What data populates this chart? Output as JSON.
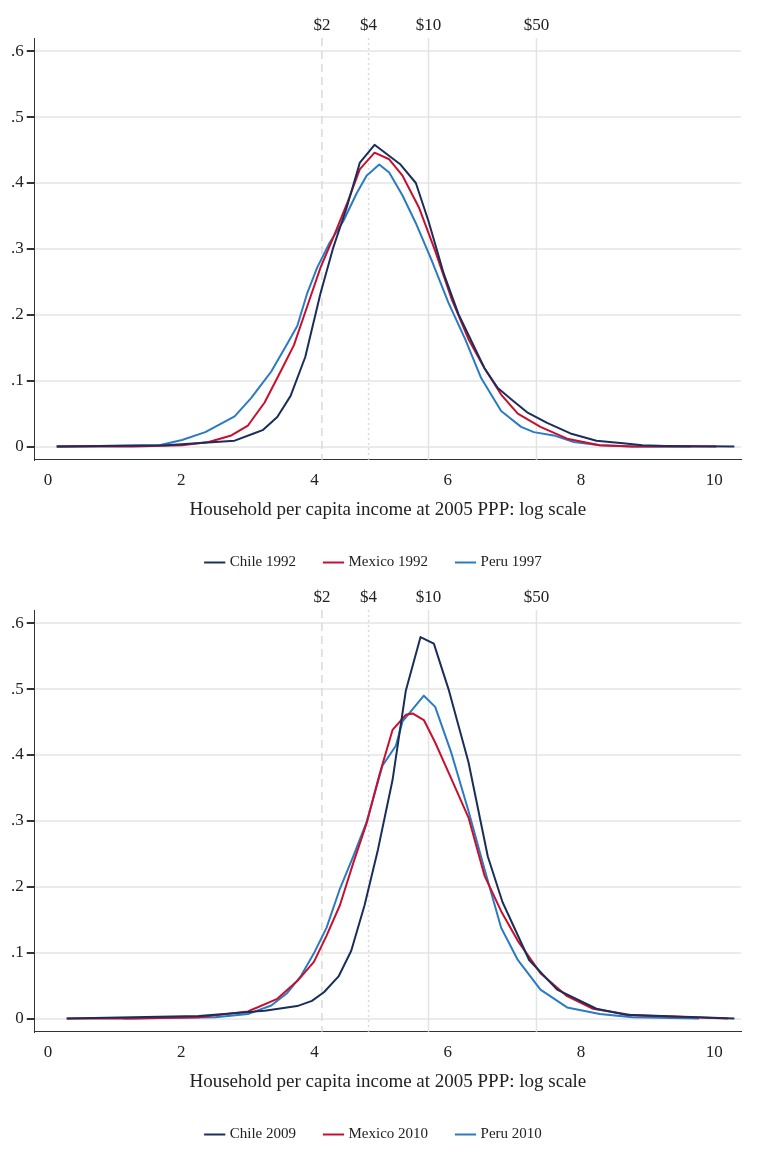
{
  "chart_data": [
    {
      "type": "line",
      "xlabel": "Household per capita income at 2005 PPP: log scale",
      "xlim": [
        -0.2,
        10.4
      ],
      "ylim": [
        -0.02,
        0.62
      ],
      "xticks": [
        0,
        2,
        4,
        6,
        8,
        10
      ],
      "yticks": [
        0,
        {
          "value": 0.1,
          "label": ".1"
        },
        {
          "value": 0.2,
          "label": ".2"
        },
        {
          "value": 0.3,
          "label": ".3"
        },
        {
          "value": 0.4,
          "label": ".4"
        },
        {
          "value": 0.5,
          "label": ".5"
        },
        {
          "value": 0.6,
          "label": ".6"
        }
      ],
      "grid": "y",
      "legend": "bottom",
      "line_style": "solid",
      "marker": "none",
      "ref_lines": [
        {
          "axis": "x",
          "value": 4.11,
          "color": "#d9d9d9",
          "line_style": "dashed"
        },
        {
          "axis": "x",
          "value": 4.81,
          "color": "#d9d9d9",
          "line_style": "dotted"
        },
        {
          "axis": "x",
          "value": 5.71,
          "color": "#e3e3e3",
          "line_style": "solid"
        },
        {
          "axis": "x",
          "value": 7.33,
          "color": "#e3e3e3",
          "line_style": "solid"
        }
      ],
      "annotations": [
        "$2",
        "$4",
        "$10",
        "$50"
      ],
      "series": [
        {
          "name": "Chile 1992",
          "color": "#1a2e5a",
          "x": [
            0.13,
            1.77,
            2.8,
            3.22,
            3.44,
            3.64,
            3.86,
            4.09,
            4.28,
            4.48,
            4.68,
            4.9,
            5.29,
            5.52,
            5.71,
            5.94,
            6.16,
            6.55,
            6.75,
            6.95,
            7.19,
            7.49,
            7.84,
            8.23,
            8.63,
            8.92,
            9.27,
            10.3
          ],
          "values": [
            0,
            0.002,
            0.009,
            0.025,
            0.045,
            0.077,
            0.136,
            0.233,
            0.302,
            0.362,
            0.431,
            0.458,
            0.428,
            0.4,
            0.342,
            0.262,
            0.201,
            0.119,
            0.089,
            0.072,
            0.052,
            0.036,
            0.02,
            0.009,
            0.005,
            0.002,
            0.001,
            0
          ]
        },
        {
          "name": "Mexico 1992",
          "color": "#c8102e",
          "x": [
            0.13,
            1.27,
            2.01,
            2.41,
            2.75,
            3.0,
            3.25,
            3.49,
            3.69,
            3.89,
            4.09,
            4.28,
            4.48,
            4.68,
            4.9,
            5.12,
            5.32,
            5.57,
            5.81,
            6.06,
            6.31,
            6.55,
            6.8,
            7.05,
            7.39,
            7.79,
            8.28,
            8.77,
            10.03
          ],
          "values": [
            0,
            0,
            0.002,
            0.007,
            0.017,
            0.032,
            0.067,
            0.114,
            0.154,
            0.213,
            0.272,
            0.317,
            0.367,
            0.421,
            0.446,
            0.436,
            0.411,
            0.362,
            0.297,
            0.223,
            0.163,
            0.119,
            0.079,
            0.05,
            0.03,
            0.012,
            0.002,
            0,
            0
          ]
        },
        {
          "name": "Peru 1997",
          "color": "#2b7bc4",
          "x": [
            0.13,
            1.67,
            2.01,
            2.36,
            2.8,
            3.05,
            3.35,
            3.59,
            3.74,
            3.89,
            4.04,
            4.23,
            4.43,
            4.63,
            4.78,
            4.97,
            5.12,
            5.32,
            5.52,
            5.76,
            6.01,
            6.26,
            6.5,
            6.8,
            7.1,
            7.29,
            7.59,
            7.89,
            8.28,
            8.77,
            9.65
          ],
          "values": [
            0,
            0.002,
            0.01,
            0.022,
            0.046,
            0.074,
            0.114,
            0.156,
            0.183,
            0.233,
            0.272,
            0.31,
            0.342,
            0.384,
            0.411,
            0.428,
            0.416,
            0.381,
            0.339,
            0.282,
            0.218,
            0.163,
            0.104,
            0.054,
            0.03,
            0.022,
            0.017,
            0.007,
            0.002,
            0,
            0
          ]
        }
      ]
    },
    {
      "type": "line",
      "xlabel": "Household per capita income at 2005 PPP: log scale",
      "xlim": [
        -0.2,
        10.4
      ],
      "ylim": [
        -0.02,
        0.62
      ],
      "xticks": [
        0,
        2,
        4,
        6,
        8,
        10
      ],
      "yticks": [
        0,
        {
          "value": 0.1,
          "label": ".1"
        },
        {
          "value": 0.2,
          "label": ".2"
        },
        {
          "value": 0.3,
          "label": ".3"
        },
        {
          "value": 0.4,
          "label": ".4"
        },
        {
          "value": 0.5,
          "label": ".5"
        },
        {
          "value": 0.6,
          "label": ".6"
        }
      ],
      "grid": "y",
      "legend": "bottom",
      "line_style": "solid",
      "marker": "none",
      "ref_lines": [
        {
          "axis": "x",
          "value": 4.11,
          "color": "#d9d9d9",
          "line_style": "dashed"
        },
        {
          "axis": "x",
          "value": 4.81,
          "color": "#d9d9d9",
          "line_style": "dotted"
        },
        {
          "axis": "x",
          "value": 5.71,
          "color": "#e3e3e3",
          "line_style": "solid"
        },
        {
          "axis": "x",
          "value": 7.33,
          "color": "#e3e3e3",
          "line_style": "solid"
        }
      ],
      "annotations": [
        "$2",
        "$4",
        "$10",
        "$50"
      ],
      "series": [
        {
          "name": "Chile 2009",
          "color": "#1a2e5a",
          "x": [
            0.28,
            2.26,
            3.25,
            3.74,
            3.96,
            4.14,
            4.36,
            4.55,
            4.75,
            4.95,
            5.17,
            5.37,
            5.59,
            5.79,
            6.01,
            6.31,
            6.6,
            6.82,
            7.22,
            7.64,
            8.23,
            8.67,
            10.3
          ],
          "values": [
            0,
            0.004,
            0.012,
            0.019,
            0.027,
            0.04,
            0.064,
            0.103,
            0.172,
            0.256,
            0.362,
            0.498,
            0.579,
            0.569,
            0.5,
            0.389,
            0.246,
            0.177,
            0.089,
            0.044,
            0.015,
            0.006,
            0
          ]
        },
        {
          "name": "Mexico 2010",
          "color": "#c8102e",
          "x": [
            0.28,
            1.27,
            2.26,
            3.0,
            3.44,
            3.74,
            3.99,
            4.18,
            4.38,
            4.58,
            4.78,
            4.97,
            5.17,
            5.37,
            5.47,
            5.64,
            5.81,
            6.03,
            6.31,
            6.55,
            6.8,
            7.05,
            7.39,
            7.79,
            8.18,
            8.77,
            10.2
          ],
          "values": [
            0,
            0,
            0.002,
            0.011,
            0.03,
            0.057,
            0.086,
            0.126,
            0.172,
            0.236,
            0.296,
            0.369,
            0.438,
            0.461,
            0.463,
            0.453,
            0.419,
            0.369,
            0.305,
            0.217,
            0.163,
            0.118,
            0.069,
            0.034,
            0.015,
            0.005,
            0
          ]
        },
        {
          "name": "Peru 2010",
          "color": "#2b7bc4",
          "x": [
            1.13,
            2.51,
            3.0,
            3.35,
            3.59,
            3.79,
            3.99,
            4.18,
            4.38,
            4.58,
            4.78,
            5.02,
            5.22,
            5.32,
            5.64,
            5.81,
            6.05,
            6.31,
            6.55,
            6.8,
            7.05,
            7.39,
            7.79,
            8.28,
            8.77,
            9.77
          ],
          "values": [
            0,
            0.002,
            0.007,
            0.02,
            0.039,
            0.064,
            0.099,
            0.138,
            0.197,
            0.246,
            0.298,
            0.384,
            0.414,
            0.451,
            0.49,
            0.473,
            0.404,
            0.315,
            0.227,
            0.138,
            0.089,
            0.044,
            0.017,
            0.007,
            0.002,
            0
          ]
        }
      ]
    }
  ]
}
